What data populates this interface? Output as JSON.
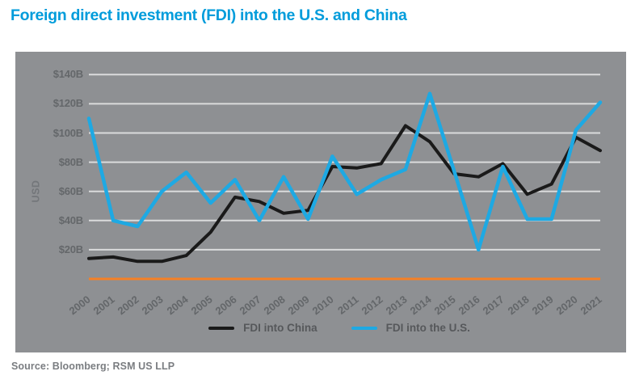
{
  "title": "Foreign direct investment (FDI) into the U.S. and China",
  "source": "Source: Bloomberg; RSM US LLP",
  "colors": {
    "title": "#009CDB",
    "panel_bg": "#8E9093",
    "gridline": "#DADBDC",
    "baseline": "#F58025",
    "china_line": "#1A1A1A",
    "us_line": "#1EA9E3",
    "axis_text": "#64676A",
    "usd_text": "#73767A",
    "legend_text": "#56585B",
    "source_text": "#7A7D81"
  },
  "y_axis": {
    "label": "USD",
    "ticks": [
      {
        "value": 20,
        "label": "$20B"
      },
      {
        "value": 40,
        "label": "$40B"
      },
      {
        "value": 60,
        "label": "$60B"
      },
      {
        "value": 80,
        "label": "$80B"
      },
      {
        "value": 100,
        "label": "$100B"
      },
      {
        "value": 120,
        "label": "$120B"
      },
      {
        "value": 140,
        "label": "$140B"
      }
    ]
  },
  "chart_data": {
    "type": "line",
    "title": "Foreign direct investment (FDI) into the U.S. and China",
    "xlabel": "",
    "ylabel": "USD",
    "units": "USD billions",
    "ylim": [
      0,
      155
    ],
    "grid": "horizontal-only",
    "legend_position": "bottom-center",
    "categories": [
      "2000",
      "2001",
      "2002",
      "2003",
      "2004",
      "2005",
      "2006",
      "2007",
      "2008",
      "2009",
      "2010",
      "2011",
      "2012",
      "2013",
      "2014",
      "2015",
      "2016",
      "2017",
      "2018",
      "2019",
      "2020",
      "2021"
    ],
    "series": [
      {
        "name": "FDI into China",
        "color": "#1A1A1A",
        "values": [
          14,
          15,
          12,
          12,
          16,
          32,
          56,
          53,
          45,
          47,
          77,
          76,
          79,
          105,
          94,
          72,
          70,
          79,
          58,
          65,
          97,
          88
        ]
      },
      {
        "name": "FDI into the U.S.",
        "color": "#1EA9E3",
        "values": [
          110,
          40,
          36,
          60,
          73,
          52,
          68,
          40,
          70,
          41,
          84,
          58,
          68,
          75,
          127,
          74,
          20,
          77,
          41,
          41,
          102,
          121
        ]
      }
    ]
  }
}
